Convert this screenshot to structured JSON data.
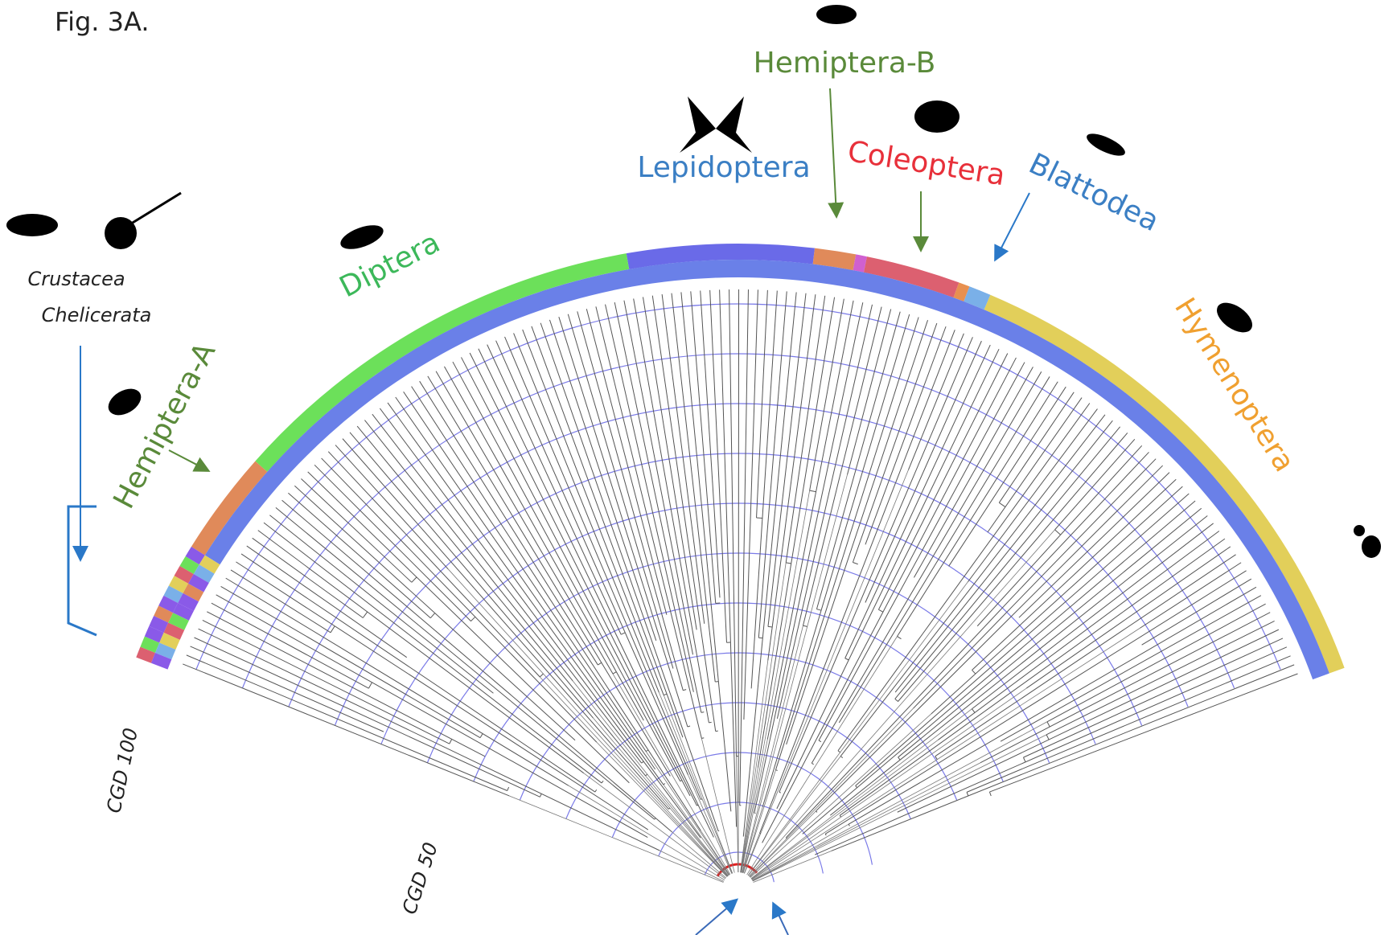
{
  "title": "Fig. 3A.",
  "clades": {
    "crustacea": "Crustacea",
    "chelicerata": "Chelicerata",
    "hemiptera_a": "Hemiptera-A",
    "diptera": "Diptera",
    "lepidoptera": "Lepidoptera",
    "hemiptera_b": "Hemiptera-B",
    "coleoptera": "Coleoptera",
    "blattodea": "Blattodea",
    "hymenoptera": "Hymenoptera"
  },
  "scale_labels": [
    "CGD 100",
    "CGD 50"
  ]
}
